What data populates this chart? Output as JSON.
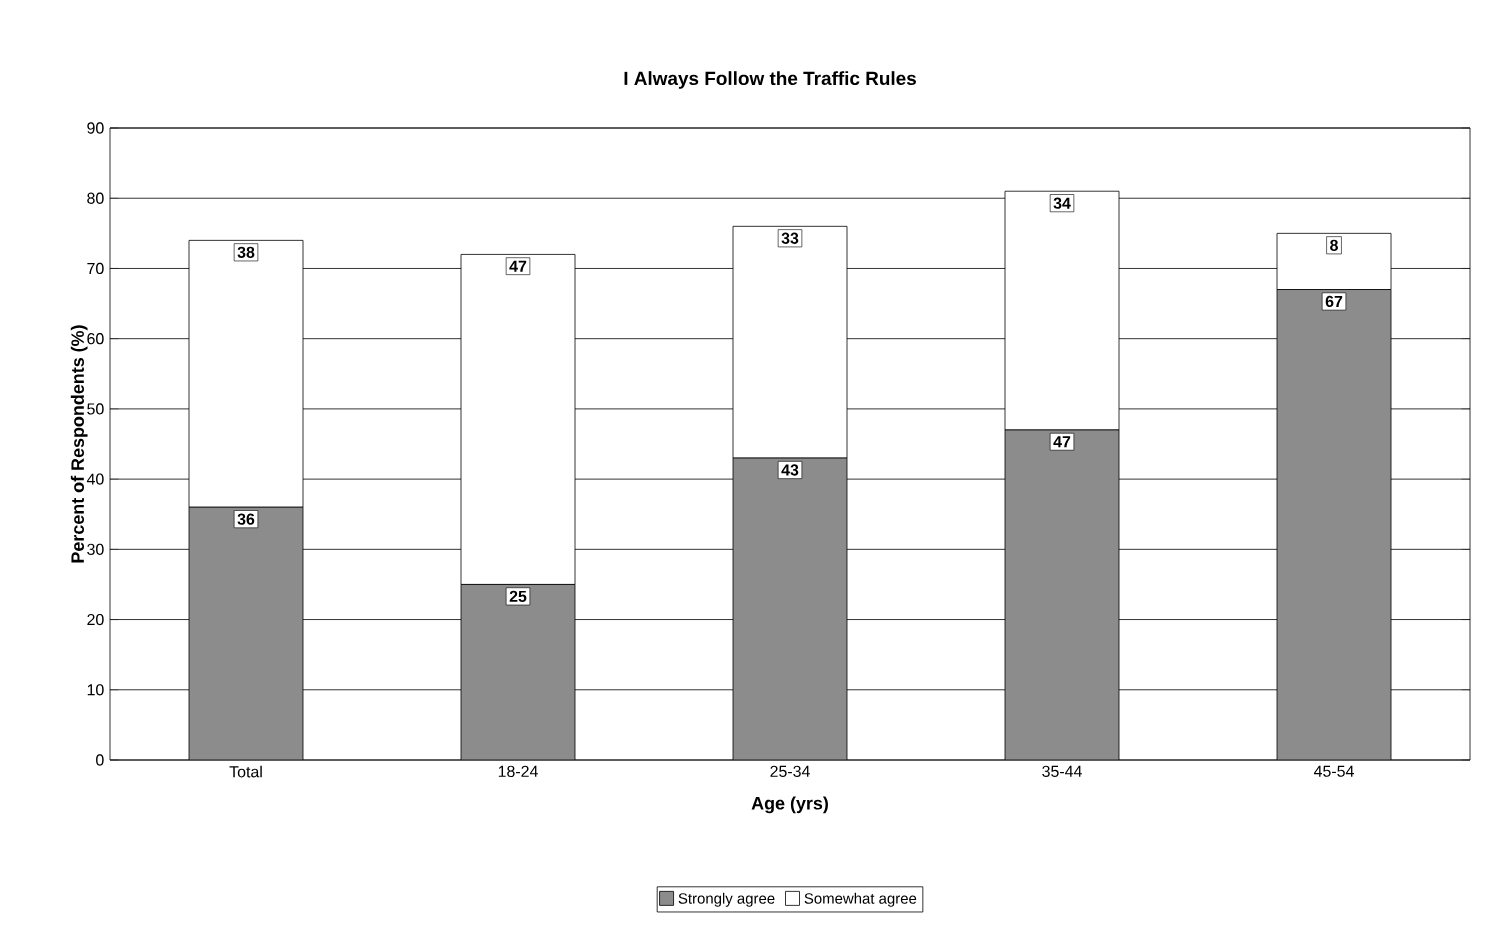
{
  "chart_data": {
    "type": "bar",
    "stacked": true,
    "title": "I Always Follow the Traffic Rules",
    "xlabel": "Age (yrs)",
    "ylabel": "Percent of Respondents (%)",
    "categories": [
      "Total",
      "18-24",
      "25-34",
      "35-44",
      "45-54"
    ],
    "series": [
      {
        "name": "Strongly agree",
        "color": "#8c8c8c",
        "values": [
          36,
          25,
          43,
          47,
          67
        ]
      },
      {
        "name": "Somewhat agree",
        "color": "#ffffff",
        "values": [
          38,
          47,
          33,
          34,
          8
        ]
      }
    ],
    "ylim": [
      0,
      90
    ],
    "yticks": [
      0,
      10,
      20,
      30,
      40,
      50,
      60,
      70,
      80,
      90
    ],
    "grid": "y",
    "legend": "bottom",
    "data_labels": true
  }
}
